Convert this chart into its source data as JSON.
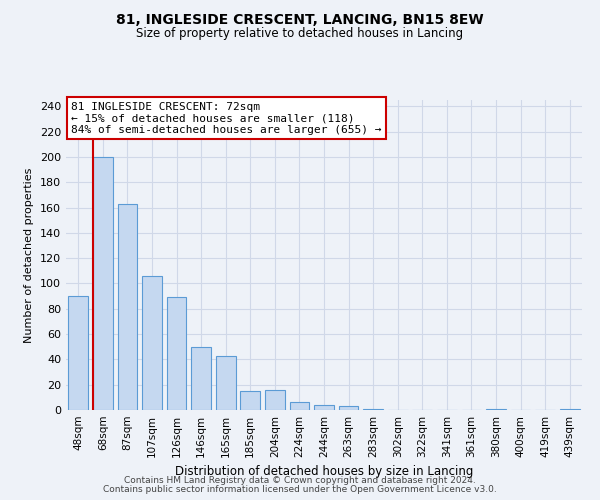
{
  "title": "81, INGLESIDE CRESCENT, LANCING, BN15 8EW",
  "subtitle": "Size of property relative to detached houses in Lancing",
  "xlabel": "Distribution of detached houses by size in Lancing",
  "ylabel": "Number of detached properties",
  "footnote1": "Contains HM Land Registry data © Crown copyright and database right 2024.",
  "footnote2": "Contains public sector information licensed under the Open Government Licence v3.0.",
  "bar_labels": [
    "48sqm",
    "68sqm",
    "87sqm",
    "107sqm",
    "126sqm",
    "146sqm",
    "165sqm",
    "185sqm",
    "204sqm",
    "224sqm",
    "244sqm",
    "263sqm",
    "283sqm",
    "302sqm",
    "322sqm",
    "341sqm",
    "361sqm",
    "380sqm",
    "400sqm",
    "419sqm",
    "439sqm"
  ],
  "bar_heights": [
    90,
    200,
    163,
    106,
    89,
    50,
    43,
    15,
    16,
    6,
    4,
    3,
    1,
    0,
    0,
    0,
    0,
    1,
    0,
    0,
    1
  ],
  "bar_color": "#c5d8f0",
  "bar_edge_color": "#5b9bd5",
  "vline_color": "#cc0000",
  "annotation_line1": "81 INGLESIDE CRESCENT: 72sqm",
  "annotation_line2": "← 15% of detached houses are smaller (118)",
  "annotation_line3": "84% of semi-detached houses are larger (655) →",
  "annotation_box_color": "#cc0000",
  "ylim": [
    0,
    245
  ],
  "yticks": [
    0,
    20,
    40,
    60,
    80,
    100,
    120,
    140,
    160,
    180,
    200,
    220,
    240
  ],
  "grid_color": "#d0d8e8",
  "bg_color": "#eef2f8"
}
